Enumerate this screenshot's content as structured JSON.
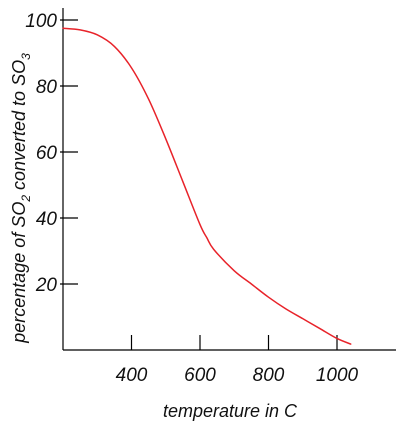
{
  "chart_data": {
    "type": "line",
    "title": "",
    "xlabel": "temperature in C",
    "ylabel": {
      "parts": [
        {
          "text": "percentage of SO",
          "sub": false
        },
        {
          "text": "2",
          "sub": true
        },
        {
          "text": " converted to SO",
          "sub": false
        },
        {
          "text": "3",
          "sub": true
        }
      ]
    },
    "xlim": [
      200,
      1150
    ],
    "ylim": [
      0,
      102
    ],
    "xticks": [
      400,
      600,
      800,
      1000
    ],
    "yticks": [
      20,
      40,
      60,
      80,
      100
    ],
    "grid": false,
    "series": [
      {
        "color": "#e8232a",
        "x": [
          200,
          250,
          300,
          350,
          400,
          450,
          500,
          550,
          600,
          620,
          640,
          700,
          750,
          800,
          850,
          900,
          950,
          1000,
          1040
        ],
        "y": [
          97.5,
          97,
          95.5,
          92,
          85.5,
          76,
          64,
          51,
          38,
          34,
          30.5,
          24,
          20,
          16,
          12.5,
          9.5,
          6.5,
          3.5,
          1.8
        ]
      }
    ]
  }
}
